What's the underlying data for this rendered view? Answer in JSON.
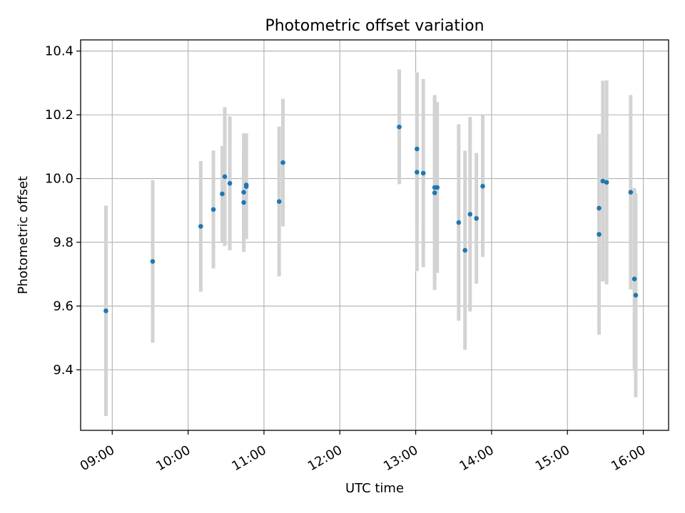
{
  "chart_data": {
    "type": "scatter",
    "title": "Photometric offset variation",
    "xlabel": "UTC time",
    "ylabel": "Photometric offset",
    "x_axis_type": "time",
    "xlim": [
      "08:35",
      "16:20"
    ],
    "ylim": [
      9.21,
      10.435
    ],
    "x_ticks": [
      "09:00",
      "10:00",
      "11:00",
      "12:00",
      "13:00",
      "14:00",
      "15:00",
      "16:00"
    ],
    "y_ticks": [
      9.4,
      9.6,
      9.8,
      10.0,
      10.2,
      10.4
    ],
    "y_tick_labels": [
      "9.4",
      "9.6",
      "9.8",
      "10.0",
      "10.2",
      "10.4"
    ],
    "grid": true,
    "legend": "none",
    "colors": {
      "points": "#1f77b4",
      "error_bars": "#d3d3d3",
      "grid": "#b0b0b0"
    },
    "points": [
      {
        "x": "08:55",
        "y": 9.585,
        "err": 0.33
      },
      {
        "x": "09:32",
        "y": 9.74,
        "err": 0.255
      },
      {
        "x": "10:10",
        "y": 9.85,
        "err": 0.205
      },
      {
        "x": "10:20",
        "y": 9.903,
        "err": 0.185
      },
      {
        "x": "10:27",
        "y": 9.952,
        "err": 0.15
      },
      {
        "x": "10:29",
        "y": 10.006,
        "err": 0.218
      },
      {
        "x": "10:33",
        "y": 9.985,
        "err": 0.21
      },
      {
        "x": "10:44",
        "y": 9.957,
        "err": 0.185
      },
      {
        "x": "10:44",
        "y": 9.925,
        "err": 0.155
      },
      {
        "x": "10:46",
        "y": 9.98,
        "err": 0.162
      },
      {
        "x": "10:46",
        "y": 9.975,
        "err": 0.165
      },
      {
        "x": "11:12",
        "y": 9.928,
        "err": 0.235
      },
      {
        "x": "11:15",
        "y": 10.05,
        "err": 0.2
      },
      {
        "x": "12:47",
        "y": 10.162,
        "err": 0.18
      },
      {
        "x": "13:01",
        "y": 10.093,
        "err": 0.24
      },
      {
        "x": "13:01",
        "y": 10.02,
        "err": 0.31
      },
      {
        "x": "13:06",
        "y": 10.017,
        "err": 0.295
      },
      {
        "x": "13:15",
        "y": 9.972,
        "err": 0.29
      },
      {
        "x": "13:15",
        "y": 9.955,
        "err": 0.305
      },
      {
        "x": "13:17",
        "y": 9.972,
        "err": 0.268
      },
      {
        "x": "13:34",
        "y": 9.862,
        "err": 0.308
      },
      {
        "x": "13:39",
        "y": 9.775,
        "err": 0.312
      },
      {
        "x": "13:43",
        "y": 9.888,
        "err": 0.305
      },
      {
        "x": "13:48",
        "y": 9.875,
        "err": 0.205
      },
      {
        "x": "13:53",
        "y": 9.976,
        "err": 0.222
      },
      {
        "x": "15:25",
        "y": 9.907,
        "err": 0.21
      },
      {
        "x": "15:25",
        "y": 9.825,
        "err": 0.315
      },
      {
        "x": "15:28",
        "y": 9.992,
        "err": 0.315
      },
      {
        "x": "15:31",
        "y": 9.988,
        "err": 0.32
      },
      {
        "x": "15:50",
        "y": 9.957,
        "err": 0.305
      },
      {
        "x": "15:53",
        "y": 9.685,
        "err": 0.285
      },
      {
        "x": "15:54",
        "y": 9.634,
        "err": 0.32
      }
    ]
  }
}
